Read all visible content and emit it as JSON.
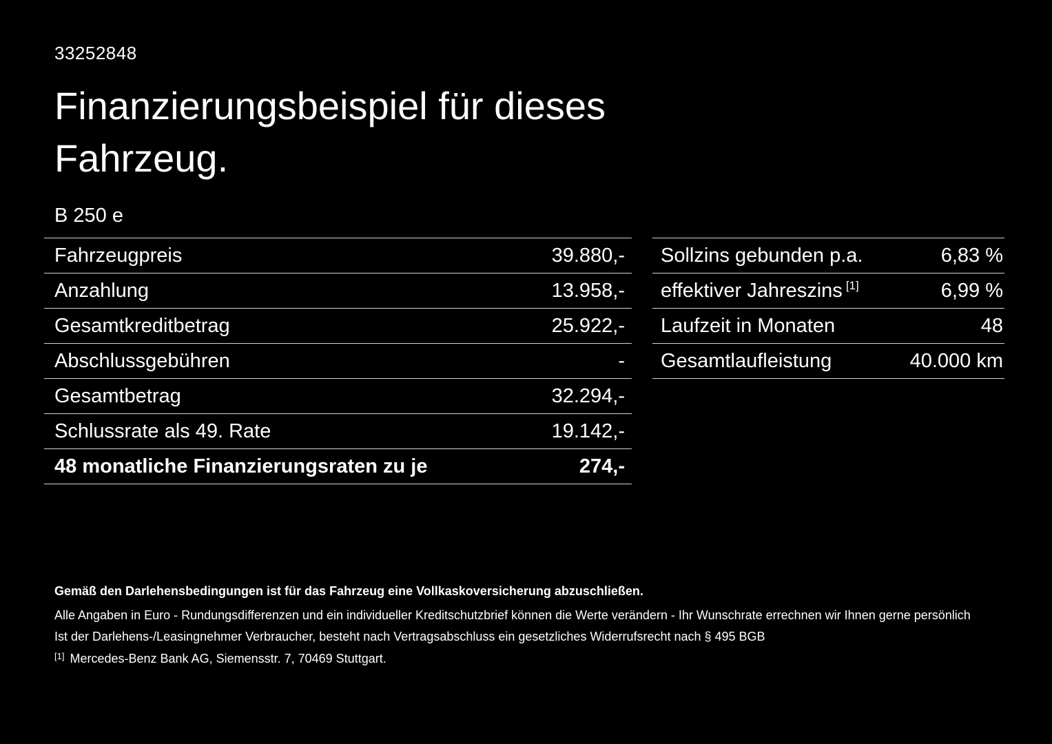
{
  "document": {
    "reference_number": "33252848",
    "title": "Finanzierungsbeispiel für dieses Fahrzeug.",
    "model": "B 250 e"
  },
  "financing_table": {
    "rows": [
      {
        "label": "Fahrzeugpreis",
        "value": "39.880,-"
      },
      {
        "label": "Anzahlung",
        "value": "13.958,-"
      },
      {
        "label": "Gesamtkreditbetrag",
        "value": "25.922,-"
      },
      {
        "label": "Abschlussgebühren",
        "value": "-"
      },
      {
        "label": "Gesamtbetrag",
        "value": "32.294,-"
      },
      {
        "label": "Schlussrate als 49. Rate",
        "value": "19.142,-"
      },
      {
        "label": "48 monatliche Finanzierungsraten zu je",
        "value": "274,-"
      }
    ]
  },
  "conditions_table": {
    "rows": [
      {
        "label": "Sollzins gebunden p.a.",
        "value": "6,83 %"
      },
      {
        "label": "effektiver Jahreszins",
        "footnote_marker": "[1]",
        "value": "6,99 %"
      },
      {
        "label": "Laufzeit in Monaten",
        "value": "48"
      },
      {
        "label": "Gesamtlaufleistung",
        "value": "40.000 km"
      }
    ]
  },
  "footer": {
    "insurance_note": "Gemäß den Darlehensbedingungen ist für das Fahrzeug eine Vollkaskoversicherung abzuschließen.",
    "euro_note": "Alle Angaben in Euro - Rundungsdifferenzen und ein individueller Kreditschutzbrief können die Werte verändern - Ihr Wunschrate errechnen wir Ihnen gerne persönlich",
    "withdrawal_note": "Ist der Darlehens-/Leasingnehmer Verbraucher, besteht nach Vertragsabschluss ein gesetzliches Widerrufsrecht nach § 495 BGB",
    "footnote_marker": "[1]",
    "footnote_text": "Mercedes-Benz Bank AG, Siemensstr. 7, 70469 Stuttgart."
  },
  "colors": {
    "background": "#000000",
    "text": "#ffffff",
    "divider": "#d6d6d6"
  }
}
